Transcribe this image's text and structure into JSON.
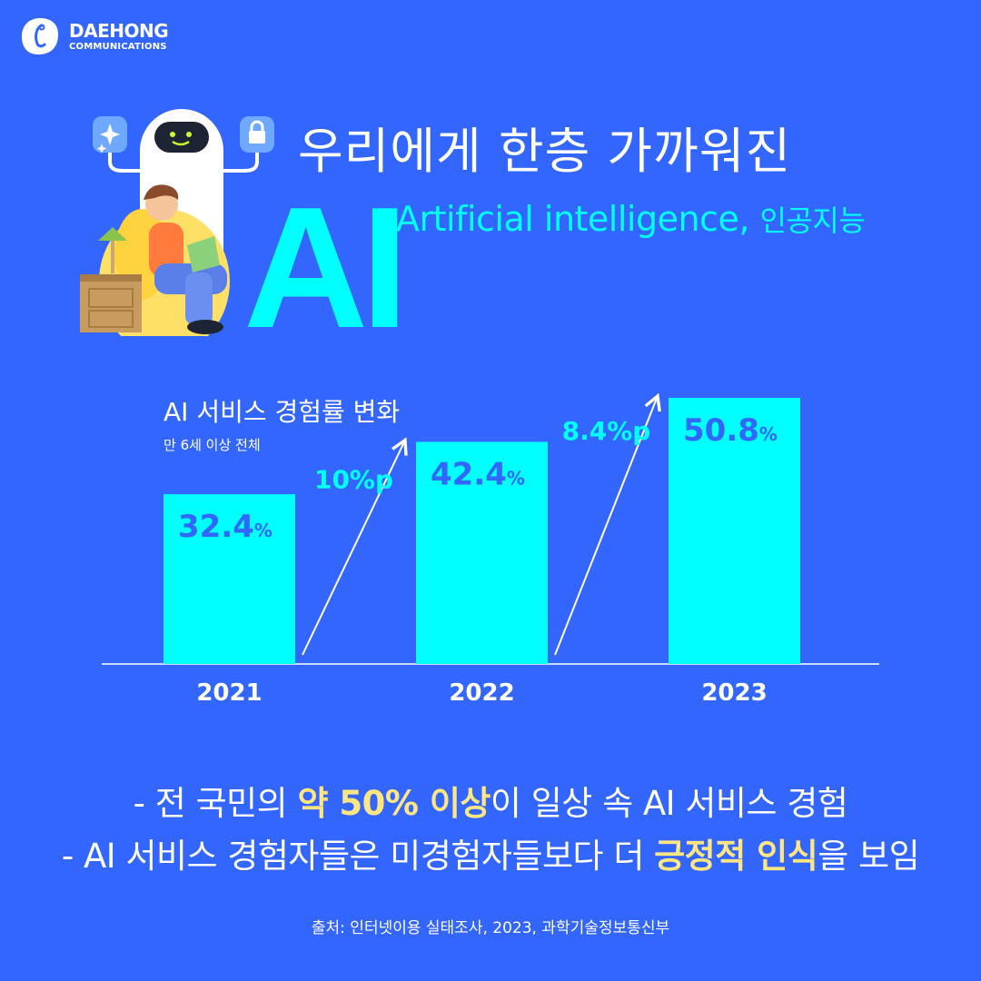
{
  "brand": {
    "name": "DAEHONG",
    "tagline": "COMMUNICATIONS"
  },
  "header": {
    "headline": "우리에게 한층 가까워진",
    "big_text": "AI",
    "subtitle_en": "Artificial intelligence,",
    "subtitle_ko": "인공지능"
  },
  "chart_data": {
    "type": "bar",
    "title": "AI 서비스 경험률 변화",
    "subtitle": "만 6세 이상 전체",
    "categories": [
      "2021",
      "2022",
      "2023"
    ],
    "values": [
      32.4,
      42.4,
      50.8
    ],
    "value_labels": [
      "32.4",
      "42.4",
      "50.8"
    ],
    "value_unit": "%",
    "changes": [
      "10%p",
      "8.4%p"
    ],
    "ylim": [
      0,
      50.8
    ],
    "bar_color": "#00ffff",
    "value_label_color": "#3366ff",
    "change_label_color": "#00ffff"
  },
  "bullets": {
    "b1_pre": "- 전 국민의 ",
    "b1_hl": "약 50% 이상",
    "b1_post": "이 일상 속 AI 서비스 경험",
    "b2_pre": "- AI 서비스 경험자들은 미경험자들보다 더 ",
    "b2_hl": "긍정적 인식",
    "b2_post": "을 보임"
  },
  "source": "출처: 인터넷이용 실태조사, 2023, 과학기술정보통신부",
  "colors": {
    "background": "#3366ff",
    "accent": "#00ffff",
    "highlight": "#ffe680"
  }
}
